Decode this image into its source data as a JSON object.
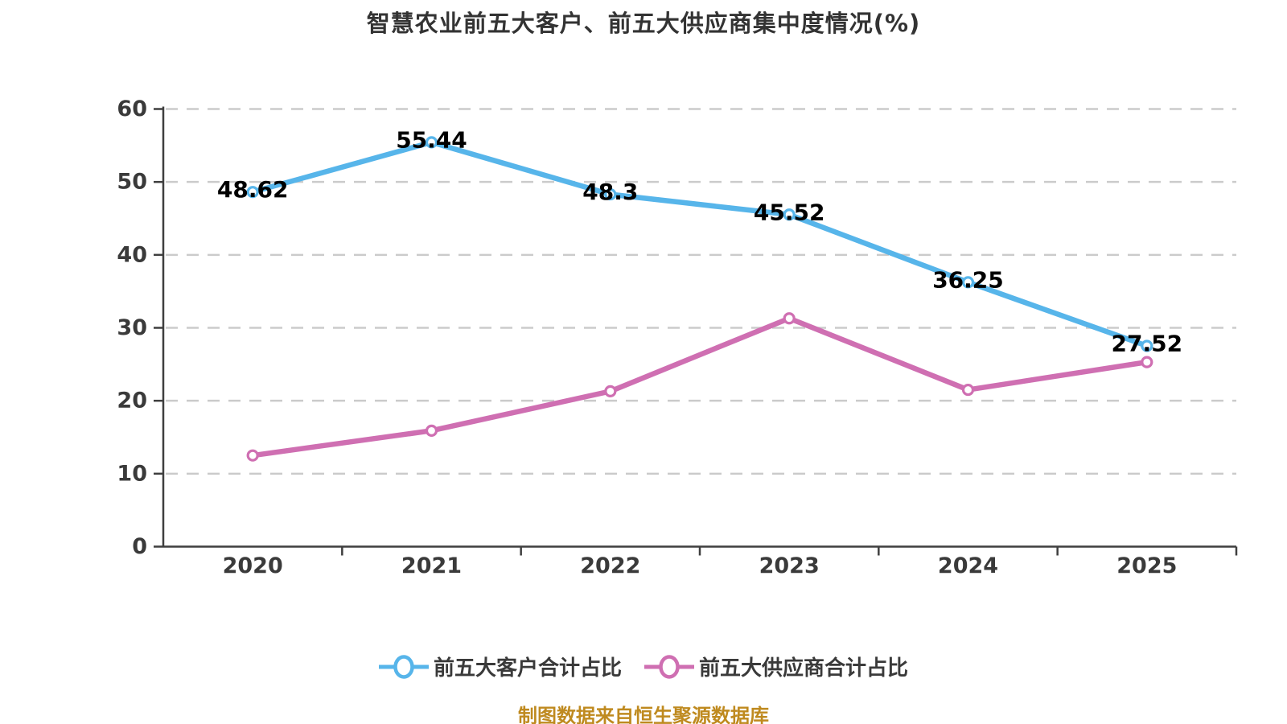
{
  "chart_data": {
    "type": "line",
    "title": "智慧农业前五大客户、前五大供应商集中度情况(%)",
    "categories": [
      "2020",
      "2021",
      "2022",
      "2023",
      "2024",
      "2025"
    ],
    "series": [
      {
        "name": "前五大客户合计占比",
        "color": "#57b5ea",
        "values": [
          48.62,
          55.44,
          48.3,
          45.52,
          36.25,
          27.52
        ],
        "data_labels": true
      },
      {
        "name": "前五大供应商合计占比",
        "color": "#cf6fb2",
        "values": [
          12.5,
          15.9,
          21.3,
          31.3,
          21.5,
          25.3
        ],
        "data_labels": false
      }
    ],
    "xlabel": "",
    "ylabel": "",
    "ylim": [
      0,
      60
    ],
    "yticks": [
      0,
      10,
      20,
      30,
      40,
      50,
      60
    ],
    "grid": "horizontal-dashed",
    "legend_position": "bottom",
    "marker_style": "circle-white-fill"
  },
  "source_note": {
    "text": "制图数据来自恒生聚源数据库",
    "color": "#bf8a1f"
  },
  "styles": {
    "background": "#ffffff",
    "title_color": "#333333",
    "axis_color": "#3f3f3f",
    "grid_color": "#cbcbcb",
    "data_label_color": "#000000"
  }
}
